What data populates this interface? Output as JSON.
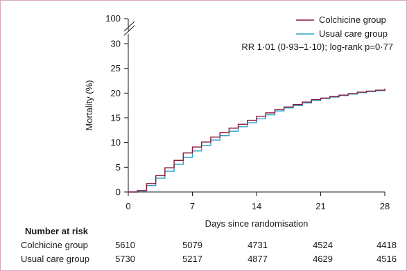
{
  "chart_data": {
    "type": "line",
    "step": true,
    "xlabel": "Days since randomisation",
    "ylabel": "Mortality (%)",
    "xlim": [
      0,
      28
    ],
    "ylim": [
      0,
      30
    ],
    "y_break_label": "100",
    "x_ticks": [
      "0",
      "7",
      "14",
      "21",
      "28"
    ],
    "y_ticks": [
      "0",
      "5",
      "10",
      "15",
      "20",
      "25",
      "30"
    ],
    "annotation": "RR 1·01 (0·93–1·10); log-rank p=0·77",
    "legend_position": "top-right",
    "x": [
      0,
      1,
      2,
      3,
      4,
      5,
      6,
      7,
      8,
      9,
      10,
      11,
      12,
      13,
      14,
      15,
      16,
      17,
      18,
      19,
      20,
      21,
      22,
      23,
      24,
      25,
      26,
      27,
      28
    ],
    "series": [
      {
        "name": "Colchicine group",
        "color": "#8b1a3c",
        "values": [
          0,
          0.3,
          1.7,
          3.3,
          4.9,
          6.4,
          7.9,
          9.1,
          10.1,
          11.1,
          12.0,
          12.9,
          13.7,
          14.5,
          15.3,
          16.0,
          16.7,
          17.2,
          17.7,
          18.2,
          18.7,
          19.0,
          19.3,
          19.6,
          19.9,
          20.2,
          20.4,
          20.6,
          20.9
        ]
      },
      {
        "name": "Usual care group",
        "color": "#2aa3c9",
        "values": [
          0,
          0.2,
          1.3,
          2.8,
          4.2,
          5.6,
          7.0,
          8.3,
          9.4,
          10.5,
          11.4,
          12.3,
          13.2,
          14.0,
          14.8,
          15.6,
          16.4,
          17.0,
          17.5,
          18.0,
          18.5,
          18.9,
          19.2,
          19.5,
          19.8,
          20.1,
          20.3,
          20.5,
          20.8
        ]
      }
    ]
  },
  "risk_table": {
    "title": "Number at risk",
    "rows": [
      {
        "label": "Colchicine group",
        "values": [
          "5610",
          "5079",
          "4731",
          "4524",
          "4418"
        ]
      },
      {
        "label": "Usual care group",
        "values": [
          "5730",
          "5217",
          "4877",
          "4629",
          "4516"
        ]
      }
    ]
  }
}
